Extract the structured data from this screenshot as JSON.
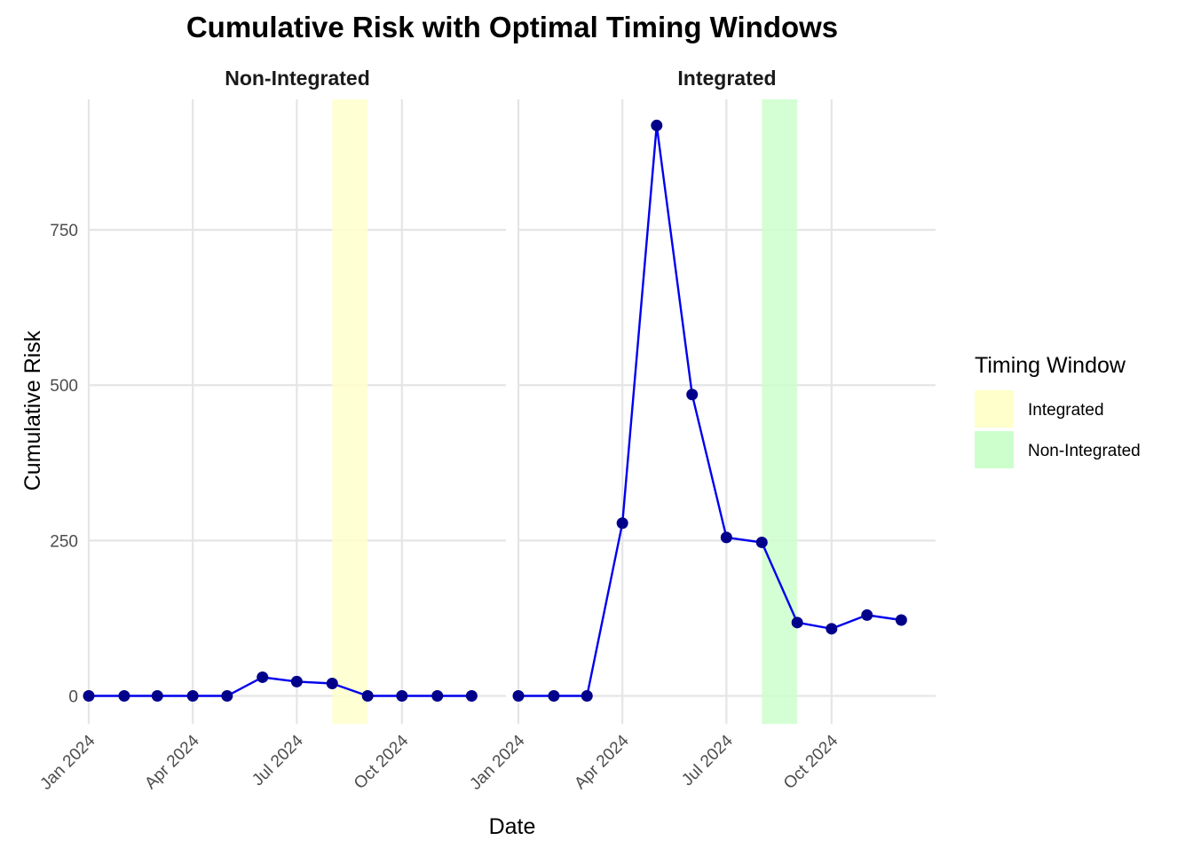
{
  "chart_data": {
    "type": "line",
    "title": "Cumulative Risk with Optimal Timing Windows",
    "xlabel": "Date",
    "ylabel": "Cumulative Risk",
    "xlim": [
      "2024-01-01",
      "2024-12-31"
    ],
    "ylim": [
      -45,
      960
    ],
    "x_ticks": [
      "2024-01-01",
      "2024-04-01",
      "2024-07-01",
      "2024-10-01"
    ],
    "x_tick_labels": [
      "Jan 2024",
      "Apr 2024",
      "Jul 2024",
      "Oct 2024"
    ],
    "y_ticks": [
      0,
      250,
      500,
      750
    ],
    "y_tick_labels": [
      "0",
      "250",
      "500",
      "750"
    ],
    "grid": true,
    "line_color": "#0000ee",
    "point_color": "#00008b",
    "legend": {
      "title": "Timing Window",
      "position": "right",
      "entries": [
        {
          "label": "Integrated",
          "color": "#ffffcc"
        },
        {
          "label": "Non-Integrated",
          "color": "#ccffcc"
        }
      ]
    },
    "panels": [
      {
        "name": "Non-Integrated",
        "window": {
          "label": "Integrated",
          "start": "2024-08-01",
          "end": "2024-08-31",
          "color": "#ffffcc"
        },
        "x": [
          "2024-01-01",
          "2024-02-01",
          "2024-03-01",
          "2024-04-01",
          "2024-05-01",
          "2024-06-01",
          "2024-07-01",
          "2024-08-01",
          "2024-09-01",
          "2024-10-01",
          "2024-11-01",
          "2024-12-01"
        ],
        "values": [
          0,
          0,
          0,
          0,
          0,
          30,
          23,
          20,
          0,
          0,
          0,
          0
        ]
      },
      {
        "name": "Integrated",
        "window": {
          "label": "Non-Integrated",
          "start": "2024-08-01",
          "end": "2024-08-31",
          "color": "#ccffcc"
        },
        "x": [
          "2024-01-01",
          "2024-02-01",
          "2024-03-01",
          "2024-04-01",
          "2024-05-01",
          "2024-06-01",
          "2024-07-01",
          "2024-08-01",
          "2024-09-01",
          "2024-10-01",
          "2024-11-01",
          "2024-12-01"
        ],
        "values": [
          0,
          0,
          0,
          278,
          918,
          485,
          255,
          247,
          118,
          108,
          130,
          122
        ]
      }
    ]
  }
}
